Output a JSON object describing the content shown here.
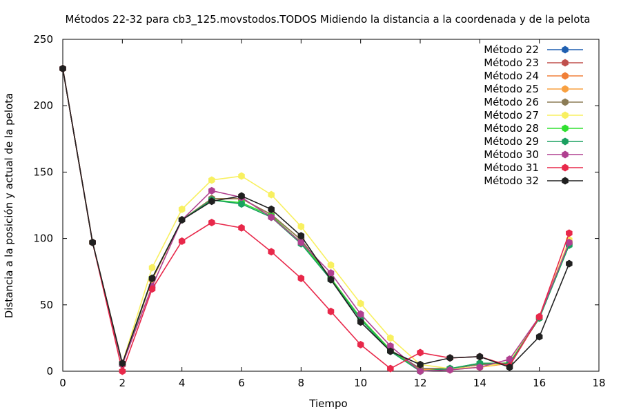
{
  "chart_data": {
    "type": "line",
    "title": "Métodos 22-32 para cb3_125.movstodos.TODOS Midiendo la distancia a la coordenada y de la pelota",
    "xlabel": "Tiempo",
    "ylabel": "Distancia a la posición y actual de la pelota",
    "xlim": [
      0,
      18
    ],
    "ylim": [
      0,
      250
    ],
    "xticks": [
      0,
      2,
      4,
      6,
      8,
      10,
      12,
      14,
      16,
      18
    ],
    "yticks": [
      0,
      50,
      100,
      150,
      200,
      250
    ],
    "grid": false,
    "legend_position": "top-right",
    "x": [
      0,
      1,
      2,
      3,
      4,
      5,
      6,
      7,
      8,
      9,
      10,
      11,
      12,
      13,
      14,
      15,
      16,
      17
    ],
    "series": [
      {
        "name": "Método 22",
        "color": "#1f5fb0",
        "values": [
          228,
          97,
          5,
          70,
          114,
          130,
          130,
          118,
          99,
          70,
          40,
          16,
          2,
          2,
          5,
          6,
          40,
          96
        ]
      },
      {
        "name": "Método 23",
        "color": "#c0504d",
        "values": [
          228,
          97,
          5,
          70,
          114,
          130,
          130,
          118,
          99,
          70,
          40,
          16,
          2,
          2,
          5,
          6,
          40,
          96
        ]
      },
      {
        "name": "Método 24",
        "color": "#f07f38",
        "values": [
          228,
          97,
          5,
          69,
          114,
          130,
          130,
          118,
          99,
          70,
          40,
          16,
          1,
          2,
          3,
          6,
          40,
          97
        ]
      },
      {
        "name": "Método 25",
        "color": "#f8a040",
        "values": [
          228,
          97,
          5,
          69,
          114,
          130,
          130,
          118,
          99,
          70,
          40,
          16,
          1,
          1,
          3,
          6,
          40,
          97
        ]
      },
      {
        "name": "Método 26",
        "color": "#8b7b55",
        "values": [
          228,
          97,
          5,
          70,
          114,
          130,
          130,
          118,
          99,
          70,
          40,
          16,
          2,
          2,
          5,
          6,
          40,
          96
        ]
      },
      {
        "name": "Método 27",
        "color": "#f8f060",
        "values": [
          228,
          97,
          6,
          78,
          122,
          144,
          147,
          133,
          109,
          80,
          51,
          25,
          5,
          2,
          3,
          7,
          41,
          99
        ]
      },
      {
        "name": "Método 28",
        "color": "#30e030",
        "values": [
          228,
          97,
          5,
          70,
          114,
          129,
          127,
          117,
          97,
          70,
          40,
          16,
          0,
          2,
          6,
          6,
          40,
          95
        ]
      },
      {
        "name": "Método 29",
        "color": "#1aa060",
        "values": [
          228,
          97,
          5,
          70,
          114,
          129,
          126,
          116,
          96,
          69,
          39,
          15,
          0,
          2,
          6,
          6,
          40,
          95
        ]
      },
      {
        "name": "Método 30",
        "color": "#b04090",
        "values": [
          228,
          97,
          5,
          64,
          114,
          136,
          131,
          116,
          97,
          74,
          43,
          19,
          0,
          1,
          3,
          9,
          41,
          97
        ]
      },
      {
        "name": "Método 31",
        "color": "#e8284a",
        "values": [
          228,
          97,
          0,
          62,
          98,
          112,
          108,
          90,
          70,
          45,
          20,
          2,
          14,
          10,
          11,
          4,
          41,
          104
        ]
      },
      {
        "name": "Método 32",
        "color": "#202020",
        "values": [
          228,
          97,
          6,
          70,
          114,
          128,
          132,
          122,
          102,
          69,
          37,
          15,
          5,
          10,
          11,
          3,
          26,
          81
        ]
      }
    ]
  }
}
